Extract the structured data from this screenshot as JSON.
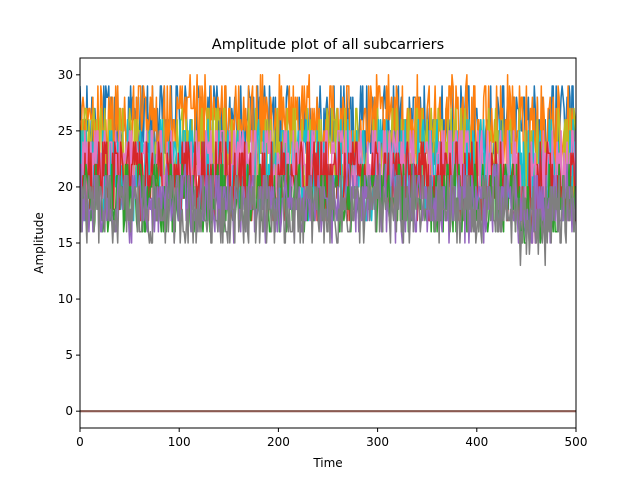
{
  "chart_data": {
    "type": "line",
    "title": "Amplitude plot of all subcarriers",
    "xlabel": "Time",
    "ylabel": "Amplitude",
    "xlim": [
      0,
      500
    ],
    "ylim": [
      -1.5,
      31.5
    ],
    "xticks": [
      0,
      100,
      200,
      300,
      400,
      500
    ],
    "yticks": [
      0,
      5,
      10,
      15,
      20,
      25,
      30
    ],
    "grid": false,
    "legend": "none",
    "n_samples": 500,
    "series": [
      {
        "color": "#1f77b4",
        "center": 25.5,
        "spread": 2.5,
        "min": 17,
        "max": 30
      },
      {
        "color": "#ff7f0e",
        "center": 25.5,
        "spread": 2.6,
        "min": 17,
        "max": 30
      },
      {
        "color": "#bcbd22",
        "center": 23.0,
        "spread": 2.6,
        "min": 14,
        "max": 27
      },
      {
        "color": "#17becf",
        "center": 21.5,
        "spread": 2.8,
        "min": 14,
        "max": 26
      },
      {
        "color": "#e377c2",
        "center": 22.0,
        "spread": 2.2,
        "min": 15,
        "max": 25
      },
      {
        "color": "#d62728",
        "center": 20.5,
        "spread": 2.4,
        "min": 14,
        "max": 24
      },
      {
        "color": "#2ca02c",
        "center": 19.0,
        "spread": 2.0,
        "min": 15,
        "max": 22
      },
      {
        "color": "#9467bd",
        "center": 18.5,
        "spread": 2.0,
        "min": 15,
        "max": 22
      },
      {
        "color": "#7f7f7f",
        "center": 18.0,
        "spread": 2.0,
        "min": 13,
        "max": 22
      },
      {
        "color": "#8c564b",
        "center": 0,
        "spread": 0,
        "min": 0,
        "max": 0
      }
    ]
  }
}
